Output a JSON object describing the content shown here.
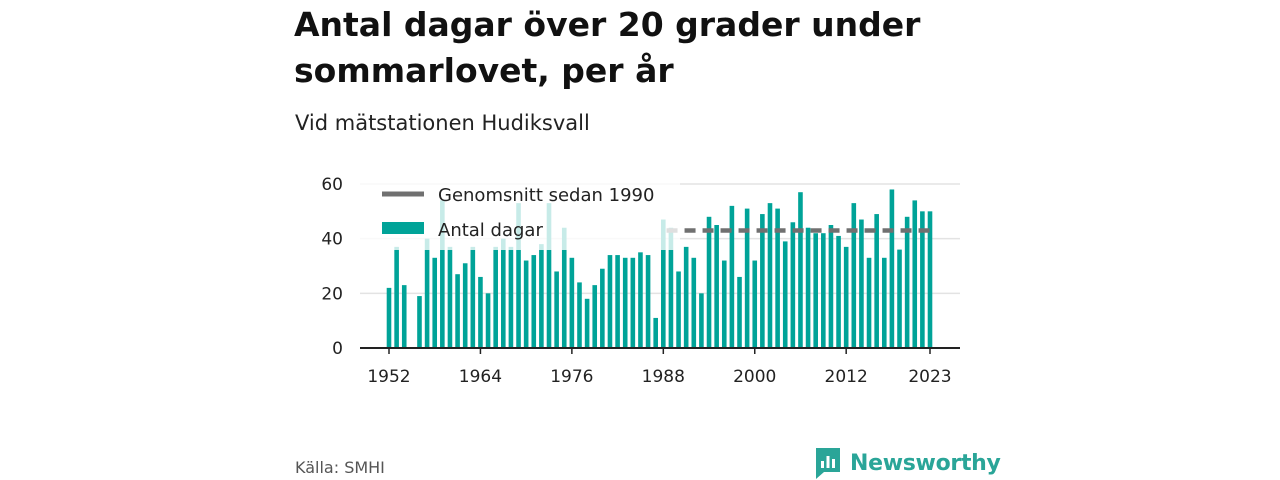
{
  "title": "Antal dagar över 20 grader under sommarlovet, per år",
  "subtitle": "Vid mätstationen Hudiksvall",
  "source": "Källa: SMHI",
  "brand": {
    "name": "Newsworthy",
    "icon": "newsworthy-logo-icon",
    "color": "#2aa598"
  },
  "chart_data": {
    "type": "bar",
    "x": [
      1952,
      1953,
      1954,
      1955,
      1956,
      1957,
      1958,
      1959,
      1960,
      1961,
      1962,
      1963,
      1964,
      1965,
      1966,
      1967,
      1968,
      1969,
      1970,
      1971,
      1972,
      1973,
      1974,
      1975,
      1976,
      1977,
      1978,
      1979,
      1980,
      1981,
      1982,
      1983,
      1984,
      1985,
      1986,
      1987,
      1988,
      1989,
      1990,
      1991,
      1992,
      1993,
      1994,
      1995,
      1996,
      1997,
      1998,
      1999,
      2000,
      2001,
      2002,
      2003,
      2004,
      2005,
      2006,
      2007,
      2008,
      2009,
      2010,
      2011,
      2012,
      2013,
      2014,
      2015,
      2016,
      2017,
      2018,
      2019,
      2020,
      2021,
      2022,
      2023
    ],
    "values": [
      22,
      37,
      23,
      null,
      19,
      40,
      33,
      54,
      37,
      27,
      31,
      37,
      26,
      20,
      37,
      40,
      37,
      53,
      32,
      34,
      38,
      53,
      28,
      44,
      33,
      24,
      18,
      23,
      29,
      34,
      34,
      33,
      33,
      35,
      34,
      11,
      47,
      44,
      28,
      37,
      33,
      20,
      48,
      45,
      32,
      52,
      26,
      51,
      32,
      49,
      53,
      51,
      39,
      46,
      57,
      44,
      42,
      42,
      45,
      41,
      37,
      53,
      47,
      33,
      49,
      33,
      58,
      36,
      48,
      54,
      50,
      50
    ],
    "x_ticks": [
      "1952",
      "1964",
      "1976",
      "1988",
      "2000",
      "2012",
      "2023"
    ],
    "y_ticks": [
      0,
      20,
      40,
      60
    ],
    "ylim": [
      0,
      62
    ],
    "average_since_1990": 43,
    "average_start_year": 1990,
    "series": [
      {
        "name": "Genomsnitt sedan 1990",
        "type": "line",
        "style": "dashed",
        "color": "#707070"
      },
      {
        "name": "Antal dagar",
        "type": "bar",
        "color": "#00a398"
      }
    ],
    "legend_position": "top-left",
    "grid": true
  }
}
